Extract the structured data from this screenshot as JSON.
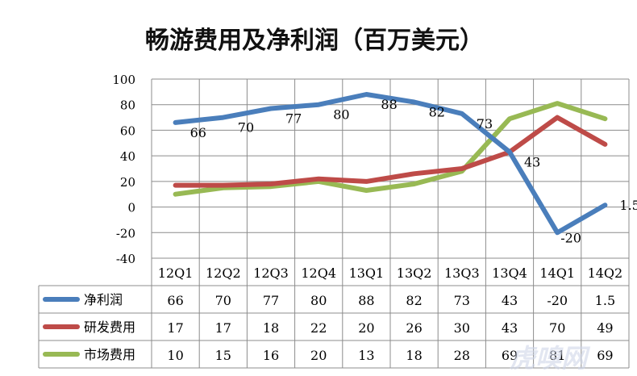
{
  "chart_data": {
    "type": "line",
    "title": "畅游费用及净利润（百万美元）",
    "categories": [
      "12Q1",
      "12Q2",
      "12Q3",
      "12Q4",
      "13Q1",
      "13Q2",
      "13Q3",
      "13Q4",
      "14Q1",
      "14Q2"
    ],
    "ylim": [
      -40,
      100
    ],
    "yticks": [
      -40,
      -20,
      0,
      20,
      40,
      60,
      80,
      100
    ],
    "grid": true,
    "legend": "data-table",
    "series": [
      {
        "name": "净利润",
        "color": "#4a7ebb",
        "values": [
          66,
          70,
          77,
          80,
          88,
          82,
          73,
          43,
          -20,
          1.5
        ]
      },
      {
        "name": "研发费用",
        "color": "#be4b48",
        "values": [
          17,
          17,
          18,
          22,
          20,
          26,
          30,
          43,
          70,
          49
        ]
      },
      {
        "name": "市场费用",
        "color": "#98b954",
        "values": [
          10,
          15,
          16,
          20,
          13,
          18,
          28,
          69,
          81,
          69
        ]
      }
    ],
    "data_labels_series": 0,
    "table_values": [
      [
        "66",
        "70",
        "77",
        "80",
        "88",
        "82",
        "73",
        "43",
        "-20",
        "1.5"
      ],
      [
        "17",
        "17",
        "18",
        "22",
        "20",
        "26",
        "30",
        "43",
        "70",
        "49"
      ],
      [
        "10",
        "15",
        "16",
        "20",
        "13",
        "18",
        "28",
        "69",
        "81",
        "69"
      ]
    ]
  },
  "watermark": "虎嗅网"
}
